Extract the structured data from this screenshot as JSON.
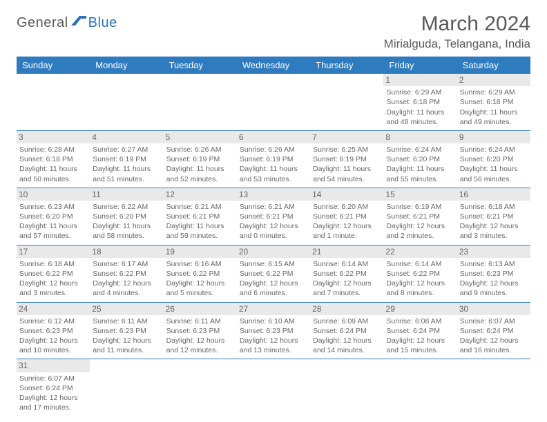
{
  "brand": {
    "part1": "General",
    "part2": "Blue",
    "icon_color": "#2a72b5"
  },
  "title": "March 2024",
  "location": "Mirialguda, Telangana, India",
  "header_bg": "#2f7bbf",
  "header_fg": "#ffffff",
  "row_border": "#2f7bbf",
  "daynum_bg": "#e9e9e9",
  "text_color": "#666666",
  "weekdays": [
    "Sunday",
    "Monday",
    "Tuesday",
    "Wednesday",
    "Thursday",
    "Friday",
    "Saturday"
  ],
  "weeks": [
    [
      null,
      null,
      null,
      null,
      null,
      {
        "n": "1",
        "sr": "Sunrise: 6:29 AM",
        "ss": "Sunset: 6:18 PM",
        "dl1": "Daylight: 11 hours",
        "dl2": "and 48 minutes."
      },
      {
        "n": "2",
        "sr": "Sunrise: 6:29 AM",
        "ss": "Sunset: 6:18 PM",
        "dl1": "Daylight: 11 hours",
        "dl2": "and 49 minutes."
      }
    ],
    [
      {
        "n": "3",
        "sr": "Sunrise: 6:28 AM",
        "ss": "Sunset: 6:18 PM",
        "dl1": "Daylight: 11 hours",
        "dl2": "and 50 minutes."
      },
      {
        "n": "4",
        "sr": "Sunrise: 6:27 AM",
        "ss": "Sunset: 6:19 PM",
        "dl1": "Daylight: 11 hours",
        "dl2": "and 51 minutes."
      },
      {
        "n": "5",
        "sr": "Sunrise: 6:26 AM",
        "ss": "Sunset: 6:19 PM",
        "dl1": "Daylight: 11 hours",
        "dl2": "and 52 minutes."
      },
      {
        "n": "6",
        "sr": "Sunrise: 6:26 AM",
        "ss": "Sunset: 6:19 PM",
        "dl1": "Daylight: 11 hours",
        "dl2": "and 53 minutes."
      },
      {
        "n": "7",
        "sr": "Sunrise: 6:25 AM",
        "ss": "Sunset: 6:19 PM",
        "dl1": "Daylight: 11 hours",
        "dl2": "and 54 minutes."
      },
      {
        "n": "8",
        "sr": "Sunrise: 6:24 AM",
        "ss": "Sunset: 6:20 PM",
        "dl1": "Daylight: 11 hours",
        "dl2": "and 55 minutes."
      },
      {
        "n": "9",
        "sr": "Sunrise: 6:24 AM",
        "ss": "Sunset: 6:20 PM",
        "dl1": "Daylight: 11 hours",
        "dl2": "and 56 minutes."
      }
    ],
    [
      {
        "n": "10",
        "sr": "Sunrise: 6:23 AM",
        "ss": "Sunset: 6:20 PM",
        "dl1": "Daylight: 11 hours",
        "dl2": "and 57 minutes."
      },
      {
        "n": "11",
        "sr": "Sunrise: 6:22 AM",
        "ss": "Sunset: 6:20 PM",
        "dl1": "Daylight: 11 hours",
        "dl2": "and 58 minutes."
      },
      {
        "n": "12",
        "sr": "Sunrise: 6:21 AM",
        "ss": "Sunset: 6:21 PM",
        "dl1": "Daylight: 11 hours",
        "dl2": "and 59 minutes."
      },
      {
        "n": "13",
        "sr": "Sunrise: 6:21 AM",
        "ss": "Sunset: 6:21 PM",
        "dl1": "Daylight: 12 hours",
        "dl2": "and 0 minutes."
      },
      {
        "n": "14",
        "sr": "Sunrise: 6:20 AM",
        "ss": "Sunset: 6:21 PM",
        "dl1": "Daylight: 12 hours",
        "dl2": "and 1 minute."
      },
      {
        "n": "15",
        "sr": "Sunrise: 6:19 AM",
        "ss": "Sunset: 6:21 PM",
        "dl1": "Daylight: 12 hours",
        "dl2": "and 2 minutes."
      },
      {
        "n": "16",
        "sr": "Sunrise: 6:18 AM",
        "ss": "Sunset: 6:21 PM",
        "dl1": "Daylight: 12 hours",
        "dl2": "and 3 minutes."
      }
    ],
    [
      {
        "n": "17",
        "sr": "Sunrise: 6:18 AM",
        "ss": "Sunset: 6:22 PM",
        "dl1": "Daylight: 12 hours",
        "dl2": "and 3 minutes."
      },
      {
        "n": "18",
        "sr": "Sunrise: 6:17 AM",
        "ss": "Sunset: 6:22 PM",
        "dl1": "Daylight: 12 hours",
        "dl2": "and 4 minutes."
      },
      {
        "n": "19",
        "sr": "Sunrise: 6:16 AM",
        "ss": "Sunset: 6:22 PM",
        "dl1": "Daylight: 12 hours",
        "dl2": "and 5 minutes."
      },
      {
        "n": "20",
        "sr": "Sunrise: 6:15 AM",
        "ss": "Sunset: 6:22 PM",
        "dl1": "Daylight: 12 hours",
        "dl2": "and 6 minutes."
      },
      {
        "n": "21",
        "sr": "Sunrise: 6:14 AM",
        "ss": "Sunset: 6:22 PM",
        "dl1": "Daylight: 12 hours",
        "dl2": "and 7 minutes."
      },
      {
        "n": "22",
        "sr": "Sunrise: 6:14 AM",
        "ss": "Sunset: 6:22 PM",
        "dl1": "Daylight: 12 hours",
        "dl2": "and 8 minutes."
      },
      {
        "n": "23",
        "sr": "Sunrise: 6:13 AM",
        "ss": "Sunset: 6:23 PM",
        "dl1": "Daylight: 12 hours",
        "dl2": "and 9 minutes."
      }
    ],
    [
      {
        "n": "24",
        "sr": "Sunrise: 6:12 AM",
        "ss": "Sunset: 6:23 PM",
        "dl1": "Daylight: 12 hours",
        "dl2": "and 10 minutes."
      },
      {
        "n": "25",
        "sr": "Sunrise: 6:11 AM",
        "ss": "Sunset: 6:23 PM",
        "dl1": "Daylight: 12 hours",
        "dl2": "and 11 minutes."
      },
      {
        "n": "26",
        "sr": "Sunrise: 6:11 AM",
        "ss": "Sunset: 6:23 PM",
        "dl1": "Daylight: 12 hours",
        "dl2": "and 12 minutes."
      },
      {
        "n": "27",
        "sr": "Sunrise: 6:10 AM",
        "ss": "Sunset: 6:23 PM",
        "dl1": "Daylight: 12 hours",
        "dl2": "and 13 minutes."
      },
      {
        "n": "28",
        "sr": "Sunrise: 6:09 AM",
        "ss": "Sunset: 6:24 PM",
        "dl1": "Daylight: 12 hours",
        "dl2": "and 14 minutes."
      },
      {
        "n": "29",
        "sr": "Sunrise: 6:08 AM",
        "ss": "Sunset: 6:24 PM",
        "dl1": "Daylight: 12 hours",
        "dl2": "and 15 minutes."
      },
      {
        "n": "30",
        "sr": "Sunrise: 6:07 AM",
        "ss": "Sunset: 6:24 PM",
        "dl1": "Daylight: 12 hours",
        "dl2": "and 16 minutes."
      }
    ],
    [
      {
        "n": "31",
        "sr": "Sunrise: 6:07 AM",
        "ss": "Sunset: 6:24 PM",
        "dl1": "Daylight: 12 hours",
        "dl2": "and 17 minutes."
      },
      null,
      null,
      null,
      null,
      null,
      null
    ]
  ]
}
